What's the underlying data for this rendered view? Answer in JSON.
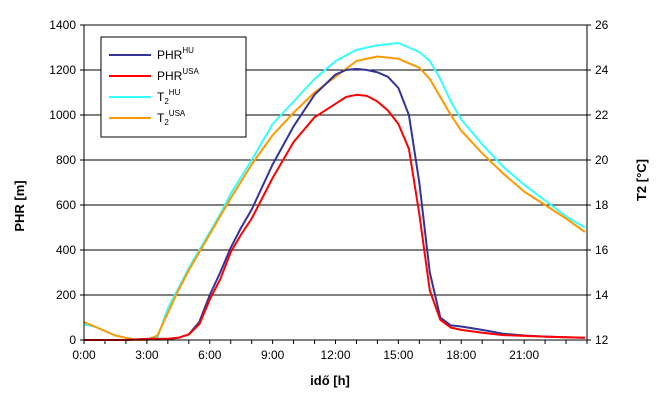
{
  "chart_data": {
    "type": "line",
    "xlabel": "idő [h]",
    "ylabel_left": "PHR [m]",
    "ylabel_right": "T2 [°C]",
    "x_ticks": [
      "0:00",
      "3:00",
      "6:00",
      "9:00",
      "12:00",
      "15:00",
      "18:00",
      "21:00"
    ],
    "x_tick_hours": [
      0,
      3,
      6,
      9,
      12,
      15,
      18,
      21
    ],
    "xlim": [
      0,
      24
    ],
    "ylim_left": [
      0,
      1400
    ],
    "ylim_right": [
      12,
      26
    ],
    "y_left_ticks": [
      0,
      200,
      400,
      600,
      800,
      1000,
      1200,
      1400
    ],
    "y_right_ticks": [
      12,
      14,
      16,
      18,
      20,
      22,
      24,
      26
    ],
    "grid": "horizontal",
    "legend_position": "top-left",
    "series": [
      {
        "name": "PHR",
        "sup": "HU",
        "axis": "left",
        "color": "#333399",
        "x": [
          0,
          1,
          2,
          3,
          4,
          4.5,
          5,
          5.5,
          6,
          6.5,
          7,
          7.5,
          8,
          9,
          10,
          11,
          12,
          12.5,
          13,
          13.5,
          14,
          14.5,
          15,
          15.5,
          16,
          16.5,
          17,
          17.5,
          18,
          19,
          20,
          21,
          22,
          23,
          23.9
        ],
        "y": [
          0,
          0,
          0,
          5,
          5,
          10,
          25,
          80,
          200,
          300,
          410,
          500,
          580,
          780,
          950,
          1090,
          1180,
          1200,
          1205,
          1200,
          1190,
          1170,
          1120,
          1000,
          700,
          300,
          100,
          65,
          60,
          45,
          28,
          20,
          15,
          12,
          10
        ]
      },
      {
        "name": "PHR",
        "sup": "USA",
        "axis": "left",
        "color": "#ff0000",
        "x": [
          0,
          1,
          2,
          3,
          4,
          4.5,
          5,
          5.5,
          6,
          6.5,
          7,
          7.5,
          8,
          9,
          10,
          11,
          12,
          12.5,
          13,
          13.5,
          14,
          14.5,
          15,
          15.5,
          16,
          16.5,
          17,
          17.5,
          18,
          19,
          20,
          21,
          22,
          23,
          23.9
        ],
        "y": [
          0,
          0,
          0,
          5,
          5,
          10,
          25,
          70,
          180,
          270,
          390,
          470,
          540,
          720,
          880,
          990,
          1050,
          1080,
          1090,
          1085,
          1060,
          1020,
          960,
          850,
          560,
          220,
          90,
          55,
          45,
          32,
          22,
          18,
          15,
          12,
          10
        ]
      },
      {
        "name": "T",
        "sub": "2",
        "sup": "HU",
        "axis": "right",
        "color": "#33ffff",
        "x": [
          0,
          0.5,
          1,
          1.5,
          2,
          2.5,
          3,
          3.5,
          4,
          4.5,
          5,
          5.5,
          6,
          6.5,
          7,
          8,
          9,
          10,
          11,
          12,
          13,
          14,
          15,
          16,
          16.5,
          17,
          17.5,
          18,
          19,
          20,
          21,
          22,
          23,
          23.9
        ],
        "y": [
          12.7,
          12.6,
          12.4,
          12.2,
          12.1,
          12.0,
          12.0,
          12.1,
          13.4,
          14.3,
          15.2,
          16.0,
          16.8,
          17.6,
          18.5,
          20.0,
          21.6,
          22.6,
          23.6,
          24.4,
          24.9,
          25.1,
          25.2,
          24.8,
          24.4,
          23.6,
          22.6,
          21.8,
          20.7,
          19.7,
          18.9,
          18.2,
          17.5,
          17.0
        ]
      },
      {
        "name": "T",
        "sub": "2",
        "sup": "USA",
        "axis": "right",
        "color": "#ff9900",
        "x": [
          0,
          0.5,
          1,
          1.5,
          2,
          2.5,
          3,
          3.5,
          4,
          4.5,
          5,
          5.5,
          6,
          6.5,
          7,
          8,
          9,
          10,
          11,
          12,
          13,
          14,
          15,
          16,
          16.5,
          17,
          17.5,
          18,
          19,
          20,
          21,
          22,
          23,
          23.9
        ],
        "y": [
          12.8,
          12.6,
          12.4,
          12.2,
          12.1,
          12.0,
          12.0,
          12.2,
          13.2,
          14.2,
          15.1,
          15.9,
          16.7,
          17.5,
          18.3,
          19.8,
          21.1,
          22.1,
          23.0,
          23.7,
          24.4,
          24.6,
          24.5,
          24.1,
          23.6,
          22.8,
          22.0,
          21.3,
          20.3,
          19.4,
          18.6,
          18.0,
          17.4,
          16.8
        ]
      }
    ]
  }
}
